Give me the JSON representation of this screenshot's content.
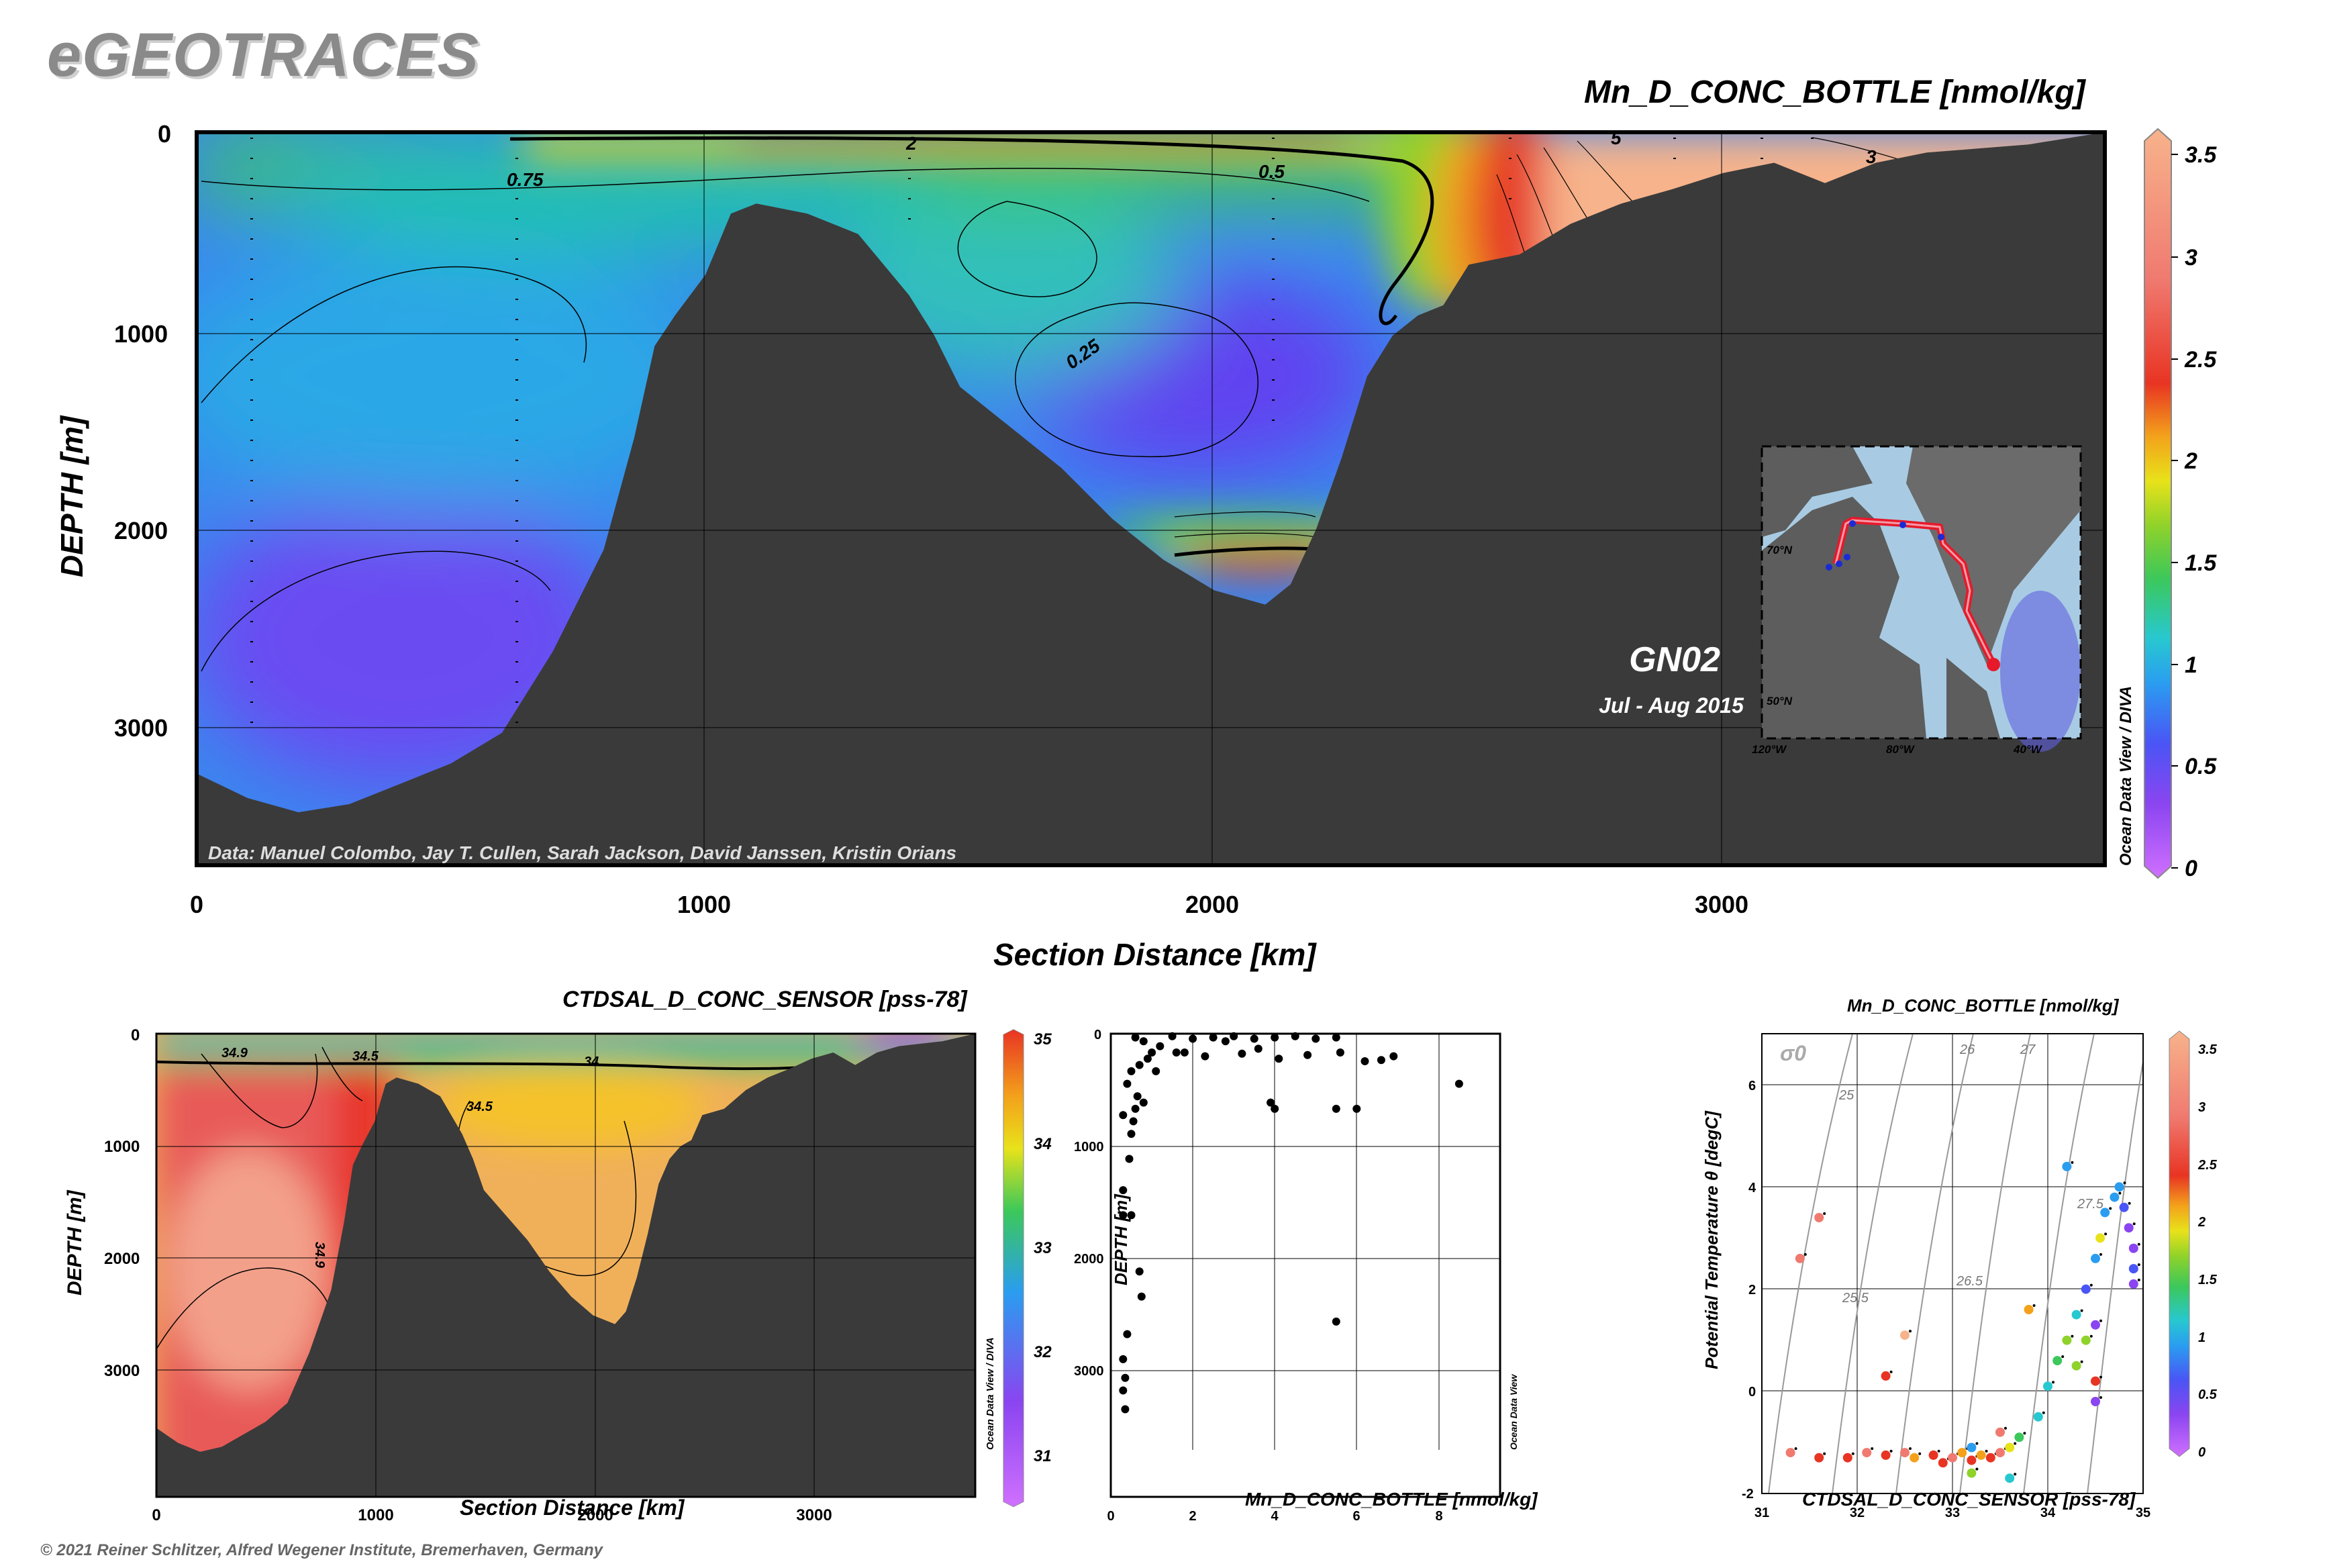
{
  "brand": "eGEOTRACES",
  "copyright": "© 2021 Reiner Schlitzer, Alfred Wegener Institute, Bremerhaven, Germany",
  "colors": {
    "bathymetry": "#3a3a3a",
    "colormap": [
      "#d070ff",
      "#8a45f0",
      "#4a55f5",
      "#2a9df0",
      "#27c8d0",
      "#3cc85a",
      "#8fd22a",
      "#e8e21a",
      "#f3a11b",
      "#e83423",
      "#f07a70",
      "#f7b38b"
    ]
  },
  "main_section": {
    "title": "Mn_D_CONC_BOTTLE [nmol/kg]",
    "xlabel": "Section Distance [km]",
    "ylabel": "DEPTH [m]",
    "credit": "Data: Manuel Colombo, Jay T. Cullen, Sarah Jackson, David Janssen, Kristin Orians",
    "cruise": "GN02",
    "dates": "Jul - Aug 2015",
    "odv_label": "Ocean Data View / DIVA",
    "map_labels": {
      "lat1": "70°N",
      "lat2": "50°N",
      "lon1": "120°W",
      "lon2": "80°W",
      "lon3": "40°W"
    }
  },
  "salinity_section": {
    "title": "CTDSAL_D_CONC_SENSOR [pss-78]",
    "xlabel": "Section Distance [km]",
    "ylabel": "DEPTH [m]",
    "odv_label": "Ocean Data View / DIVA"
  },
  "scatter": {
    "xlabel": "Mn_D_CONC_BOTTLE [nmol/kg]",
    "ylabel": "DEPTH [m]",
    "odv_label": "Ocean Data View"
  },
  "ts_plot": {
    "title": "Mn_D_CONC_BOTTLE [nmol/kg]",
    "xlabel": "CTDSAL_D_CONC_SENSOR [pss-78]",
    "ylabel": "Potential Temperature θ [degC]",
    "sigma_label": "σ0"
  },
  "chart_data": [
    {
      "type": "heatmap",
      "id": "main_section",
      "title": "Mn_D_CONC_BOTTLE [nmol/kg]",
      "xlabel": "Section Distance [km]",
      "ylabel": "DEPTH [m]",
      "xlim": [
        0,
        3750
      ],
      "ylim": [
        3600,
        0
      ],
      "x_ticks": [
        0,
        1000,
        2000,
        3000
      ],
      "y_ticks": [
        0,
        1000,
        2000,
        3000
      ],
      "colorbar": {
        "range": [
          0,
          3.5
        ],
        "ticks": [
          0,
          0.5,
          1,
          1.5,
          2,
          2.5,
          3,
          3.5
        ]
      },
      "contour_labels": [
        0.75,
        0.5,
        0.25,
        2,
        3,
        5
      ],
      "bathymetry_km_m": [
        [
          0,
          3150
        ],
        [
          100,
          3270
        ],
        [
          200,
          3340
        ],
        [
          300,
          3300
        ],
        [
          400,
          3200
        ],
        [
          500,
          3100
        ],
        [
          600,
          2950
        ],
        [
          700,
          2550
        ],
        [
          800,
          2050
        ],
        [
          860,
          1500
        ],
        [
          900,
          1050
        ],
        [
          940,
          900
        ],
        [
          1000,
          700
        ],
        [
          1050,
          400
        ],
        [
          1100,
          350
        ],
        [
          1200,
          400
        ],
        [
          1300,
          500
        ],
        [
          1400,
          800
        ],
        [
          1450,
          1000
        ],
        [
          1500,
          1250
        ],
        [
          1600,
          1450
        ],
        [
          1700,
          1650
        ],
        [
          1800,
          1900
        ],
        [
          1900,
          2100
        ],
        [
          2000,
          2250
        ],
        [
          2100,
          2320
        ],
        [
          2150,
          2220
        ],
        [
          2200,
          1950
        ],
        [
          2250,
          1600
        ],
        [
          2300,
          1200
        ],
        [
          2350,
          1000
        ],
        [
          2400,
          900
        ],
        [
          2450,
          850
        ],
        [
          2500,
          650
        ],
        [
          2600,
          600
        ],
        [
          2700,
          450
        ],
        [
          2800,
          350
        ],
        [
          2900,
          280
        ],
        [
          3000,
          200
        ],
        [
          3100,
          150
        ],
        [
          3200,
          250
        ],
        [
          3300,
          150
        ],
        [
          3400,
          100
        ],
        [
          3500,
          80
        ],
        [
          3600,
          60
        ],
        [
          3750,
          0
        ]
      ],
      "blobs": [
        {
          "x": 500,
          "y": 2500,
          "value": 0.15
        },
        {
          "x": 1950,
          "y": 1300,
          "value": 0.15
        },
        {
          "x": 1500,
          "y": 600,
          "value": 0.9
        },
        {
          "x": 200,
          "y": 150,
          "value": 0.8
        },
        {
          "x": 2150,
          "y": 2120,
          "value": 2.0
        },
        {
          "x": 1500,
          "y": 30,
          "value": 2.2
        },
        {
          "x": 2550,
          "y": 350,
          "value": 2.4
        },
        {
          "x": 3000,
          "y": 200,
          "value": 3.3
        }
      ]
    },
    {
      "type": "heatmap",
      "id": "salinity_section",
      "title": "CTDSAL_D_CONC_SENSOR [pss-78]",
      "xlabel": "Section Distance [km]",
      "ylabel": "DEPTH [m]",
      "xlim": [
        0,
        3750
      ],
      "ylim": [
        3700,
        0
      ],
      "x_ticks": [
        0,
        1000,
        2000,
        3000
      ],
      "y_ticks": [
        0,
        1000,
        2000,
        3000
      ],
      "colorbar": {
        "range": [
          31,
          35
        ],
        "ticks": [
          31,
          32,
          33,
          34,
          35
        ]
      },
      "contour_labels": [
        34.9,
        34.5,
        34,
        34.5,
        34.9
      ]
    },
    {
      "type": "scatter",
      "id": "depth_scatter",
      "xlabel": "Mn_D_CONC_BOTTLE [nmol/kg]",
      "ylabel": "DEPTH [m]",
      "xlim": [
        0,
        9.5
      ],
      "ylim": [
        3700,
        0
      ],
      "x_ticks": [
        0,
        2,
        4,
        6,
        8
      ],
      "y_ticks": [
        0,
        1000,
        2000,
        3000
      ],
      "points": [
        [
          0.35,
          3000
        ],
        [
          0.3,
          2850
        ],
        [
          0.35,
          2750
        ],
        [
          0.3,
          2600
        ],
        [
          0.4,
          2400
        ],
        [
          0.7,
          1900
        ],
        [
          0.75,
          2100
        ],
        [
          0.3,
          1450
        ],
        [
          0.5,
          1450
        ],
        [
          0.3,
          1250
        ],
        [
          0.45,
          1000
        ],
        [
          0.5,
          800
        ],
        [
          0.55,
          700
        ],
        [
          0.3,
          650
        ],
        [
          0.6,
          600
        ],
        [
          0.65,
          500
        ],
        [
          0.8,
          550
        ],
        [
          0.4,
          400
        ],
        [
          0.5,
          300
        ],
        [
          0.7,
          250
        ],
        [
          0.9,
          200
        ],
        [
          1.0,
          150
        ],
        [
          1.2,
          100
        ],
        [
          0.8,
          60
        ],
        [
          0.6,
          30
        ],
        [
          1.5,
          20
        ],
        [
          2.0,
          40
        ],
        [
          2.5,
          30
        ],
        [
          3.0,
          20
        ],
        [
          3.5,
          40
        ],
        [
          4.0,
          30
        ],
        [
          4.5,
          20
        ],
        [
          5.0,
          40
        ],
        [
          5.5,
          30
        ],
        [
          1.8,
          150
        ],
        [
          2.3,
          180
        ],
        [
          3.2,
          160
        ],
        [
          4.1,
          200
        ],
        [
          4.8,
          170
        ],
        [
          5.6,
          150
        ],
        [
          6.2,
          220
        ],
        [
          6.6,
          210
        ],
        [
          6.9,
          180
        ],
        [
          8.5,
          400
        ],
        [
          4.0,
          600
        ],
        [
          5.5,
          600
        ],
        [
          6.0,
          600
        ],
        [
          3.9,
          550
        ],
        [
          5.5,
          2300
        ],
        [
          1.1,
          300
        ],
        [
          1.6,
          150
        ],
        [
          2.8,
          60
        ],
        [
          3.6,
          120
        ]
      ]
    },
    {
      "type": "scatter",
      "id": "ts_plot",
      "title": "Mn_D_CONC_BOTTLE [nmol/kg]",
      "xlabel": "CTDSAL_D_CONC_SENSOR [pss-78]",
      "ylabel": "Potential Temperature θ [degC]",
      "xlim": [
        31,
        35
      ],
      "ylim": [
        -2,
        7
      ],
      "x_ticks": [
        31,
        32,
        33,
        34,
        35
      ],
      "y_ticks": [
        -2,
        0,
        2,
        4,
        6
      ],
      "isopycnal_labels": [
        "25",
        "25.5",
        "26",
        "26.5",
        "27",
        "27.5"
      ],
      "colorbar": {
        "range": [
          0,
          3.5
        ],
        "ticks": [
          0,
          0.5,
          1,
          1.5,
          2,
          2.5,
          3,
          3.5
        ]
      },
      "points": [
        [
          31.3,
          -1.2
        ],
        [
          31.6,
          -1.3
        ],
        [
          31.9,
          -1.3
        ],
        [
          32.1,
          -1.2
        ],
        [
          32.3,
          -1.25
        ],
        [
          32.5,
          -1.2
        ],
        [
          32.6,
          -1.3
        ],
        [
          32.8,
          -1.25
        ],
        [
          32.9,
          -1.4
        ],
        [
          33.0,
          -1.3
        ],
        [
          33.1,
          -1.2
        ],
        [
          33.2,
          -1.35
        ],
        [
          33.3,
          -1.25
        ],
        [
          33.4,
          -1.3
        ],
        [
          33.5,
          -1.2
        ],
        [
          33.6,
          -1.1
        ],
        [
          33.7,
          -0.9
        ],
        [
          33.9,
          -0.5
        ],
        [
          34.0,
          0.1
        ],
        [
          34.1,
          0.6
        ],
        [
          34.2,
          1.0
        ],
        [
          34.3,
          1.5
        ],
        [
          34.4,
          2.0
        ],
        [
          34.5,
          2.6
        ],
        [
          34.55,
          3.0
        ],
        [
          34.6,
          3.5
        ],
        [
          34.7,
          3.8
        ],
        [
          34.75,
          4.0
        ],
        [
          34.8,
          3.6
        ],
        [
          34.85,
          3.2
        ],
        [
          34.9,
          2.8
        ],
        [
          34.9,
          2.4
        ],
        [
          34.9,
          2.1
        ],
        [
          34.5,
          1.3
        ],
        [
          34.4,
          1.0
        ],
        [
          34.3,
          0.5
        ],
        [
          34.5,
          -0.2
        ],
        [
          34.5,
          0.2
        ],
        [
          33.2,
          -1.6
        ],
        [
          33.6,
          -1.7
        ],
        [
          31.4,
          2.6
        ],
        [
          31.6,
          3.4
        ],
        [
          32.5,
          1.1
        ],
        [
          32.3,
          0.3
        ],
        [
          34.2,
          4.4
        ],
        [
          33.8,
          1.6
        ],
        [
          33.5,
          -0.8
        ],
        [
          33.2,
          -1.1
        ]
      ],
      "point_values": [
        3.2,
        3.0,
        2.8,
        3.1,
        2.9,
        3.3,
        2.6,
        3.0,
        2.8,
        3.2,
        2.7,
        3.0,
        2.5,
        2.9,
        3.1,
        2.2,
        1.5,
        1.2,
        1.3,
        1.6,
        1.8,
        1.4,
        0.6,
        0.8,
        2.1,
        1.0,
        0.9,
        1.0,
        0.5,
        0.4,
        0.45,
        0.5,
        0.4,
        0.3,
        2.0,
        1.8,
        0.2,
        3.0,
        1.9,
        1.4,
        3.3,
        3.2,
        3.4,
        3.0,
        0.9,
        2.4,
        3.1,
        1.0
      ]
    }
  ]
}
